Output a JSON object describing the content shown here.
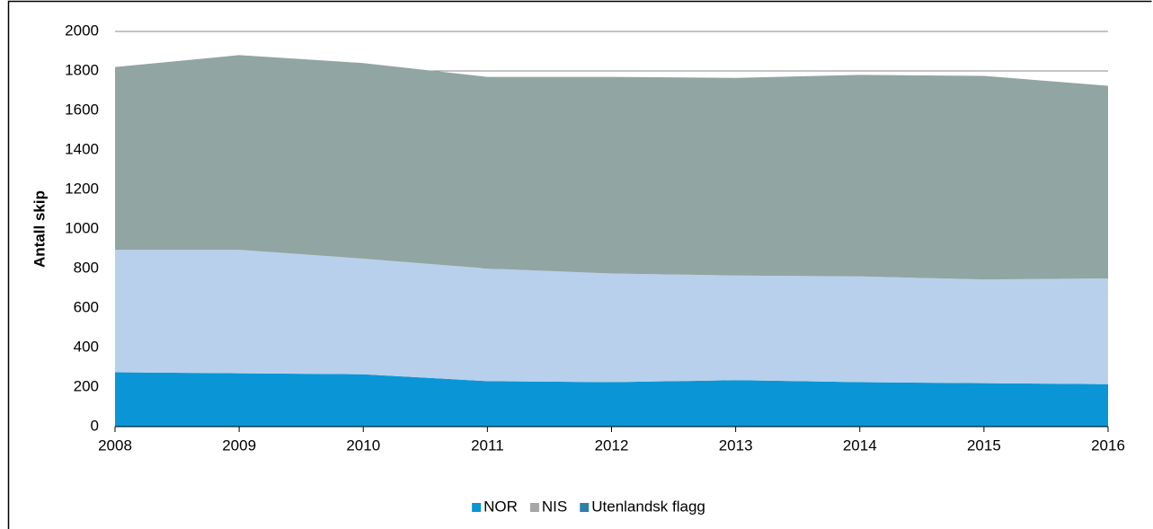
{
  "chart_data": {
    "type": "stacked_area",
    "y_label": "Antall skip",
    "x": [
      2008,
      2009,
      2010,
      2011,
      2012,
      2013,
      2014,
      2015,
      2016
    ],
    "xlim": [
      2008,
      2016
    ],
    "xticks": [
      2008,
      2009,
      2010,
      2011,
      2012,
      2013,
      2014,
      2015,
      2016
    ],
    "ylim": [
      0,
      2000
    ],
    "yticks": [
      0,
      200,
      400,
      600,
      800,
      1000,
      1200,
      1400,
      1600,
      1800,
      2000
    ],
    "grid": true,
    "legend": "bottom",
    "series": [
      {
        "name": "NOR",
        "color": "#0a96d6",
        "legend_color": "#0a96d6",
        "values": [
          275,
          270,
          265,
          230,
          225,
          235,
          225,
          220,
          215
        ]
      },
      {
        "name": "NIS",
        "color": "#b8d0ec",
        "legend_color": "#a6a6a6",
        "values": [
          620,
          625,
          585,
          570,
          550,
          530,
          535,
          525,
          535
        ]
      },
      {
        "name": "Utenlandsk flagg",
        "color": "#91a5a2",
        "legend_color": "#2e7fa8",
        "values": [
          925,
          985,
          990,
          970,
          995,
          1000,
          1020,
          1030,
          975
        ]
      }
    ]
  }
}
